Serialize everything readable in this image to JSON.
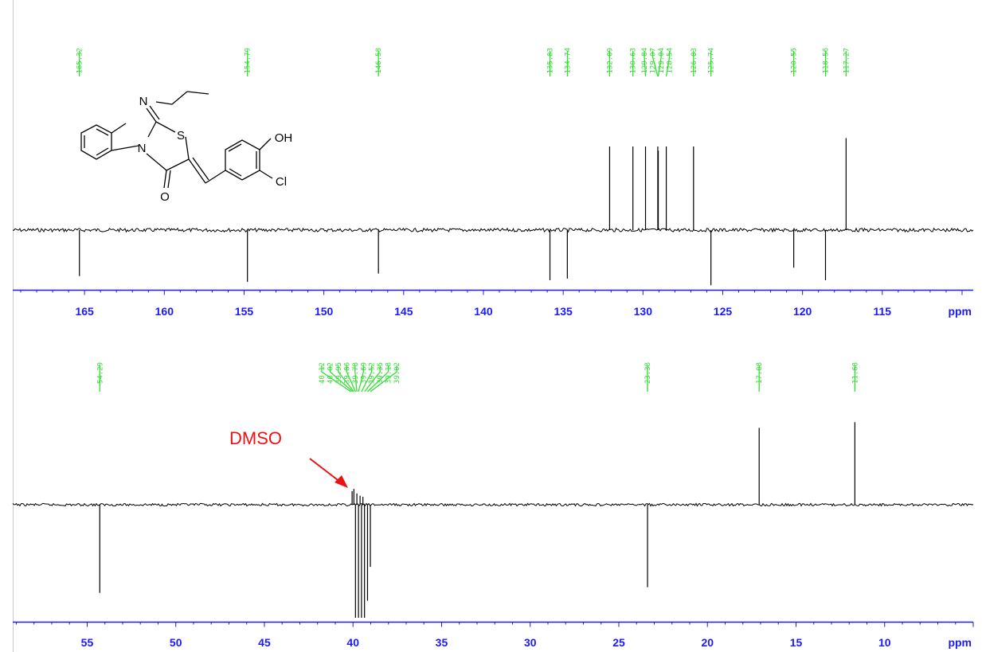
{
  "chart_data": [
    {
      "type": "line",
      "title": "",
      "xlabel": "ppm",
      "xlim": [
        169.5,
        109.3
      ],
      "ticks": [
        "165",
        "160",
        "155",
        "150",
        "145",
        "140",
        "135",
        "130",
        "125",
        "120",
        "115"
      ],
      "tick_values": [
        165,
        160,
        155,
        150,
        145,
        140,
        135,
        130,
        125,
        120,
        115
      ],
      "peak_labels": [
        "165.32",
        "154.79",
        "146.58",
        "135.83",
        "134.74",
        "132.09",
        "130.63",
        "129.84",
        "129.07",
        "129.04",
        "128.54",
        "126.83",
        "125.74",
        "120.55",
        "118.56",
        "117.27"
      ],
      "peaks": [
        {
          "ppm": 165.32,
          "intensity": -0.55
        },
        {
          "ppm": 154.79,
          "intensity": -0.62
        },
        {
          "ppm": 146.58,
          "intensity": -0.52
        },
        {
          "ppm": 135.83,
          "intensity": -0.6
        },
        {
          "ppm": 134.74,
          "intensity": -0.58
        },
        {
          "ppm": 132.09,
          "intensity": 1.0
        },
        {
          "ppm": 130.63,
          "intensity": 1.0
        },
        {
          "ppm": 129.84,
          "intensity": 1.0
        },
        {
          "ppm": 129.07,
          "intensity": 1.0
        },
        {
          "ppm": 129.04,
          "intensity": 0.95
        },
        {
          "ppm": 128.54,
          "intensity": 1.0
        },
        {
          "ppm": 126.83,
          "intensity": 1.0
        },
        {
          "ppm": 125.74,
          "intensity": -0.66
        },
        {
          "ppm": 120.55,
          "intensity": -0.45
        },
        {
          "ppm": 118.56,
          "intensity": -0.6
        },
        {
          "ppm": 117.27,
          "intensity": 1.1
        }
      ]
    },
    {
      "type": "line",
      "title": "",
      "xlabel": "ppm",
      "xlim": [
        59.2,
        5.0
      ],
      "ticks": [
        "55",
        "50",
        "45",
        "40",
        "35",
        "30",
        "25",
        "20",
        "15",
        "10"
      ],
      "tick_values": [
        55,
        50,
        45,
        40,
        35,
        30,
        25,
        20,
        15,
        10
      ],
      "peak_labels": [
        "54.29",
        "40.12",
        "40.02",
        "39.95",
        "39.86",
        "39.78",
        "39.69",
        "39.52",
        "39.35",
        "39.18",
        "39.02",
        "23.38",
        "17.08",
        "11.68"
      ],
      "peaks": [
        {
          "ppm": 54.29,
          "intensity": -0.78
        },
        {
          "ppm": 40.05,
          "intensity": 0.12
        },
        {
          "ppm": 39.95,
          "intensity": 0.14
        },
        {
          "ppm": 39.86,
          "intensity": -1.0
        },
        {
          "ppm": 39.78,
          "intensity": 0.1
        },
        {
          "ppm": 39.69,
          "intensity": -1.0
        },
        {
          "ppm": 39.6,
          "intensity": 0.08
        },
        {
          "ppm": 39.52,
          "intensity": -1.0
        },
        {
          "ppm": 39.44,
          "intensity": 0.07
        },
        {
          "ppm": 39.35,
          "intensity": -1.0
        },
        {
          "ppm": 39.18,
          "intensity": -0.85
        },
        {
          "ppm": 39.02,
          "intensity": -0.55
        },
        {
          "ppm": 23.38,
          "intensity": -0.73
        },
        {
          "ppm": 17.08,
          "intensity": 0.68
        },
        {
          "ppm": 11.68,
          "intensity": 0.73
        }
      ],
      "annotations": [
        {
          "text": "DMSO",
          "color": "#ee1111"
        }
      ]
    }
  ],
  "structure": {
    "atoms": [
      "N",
      "S",
      "OH",
      "N",
      "Cl",
      "O"
    ]
  },
  "colors": {
    "axis": "#1a1aff",
    "peak_label": "#33dd33",
    "trace": "#000000",
    "annotation": "#ee1111"
  }
}
